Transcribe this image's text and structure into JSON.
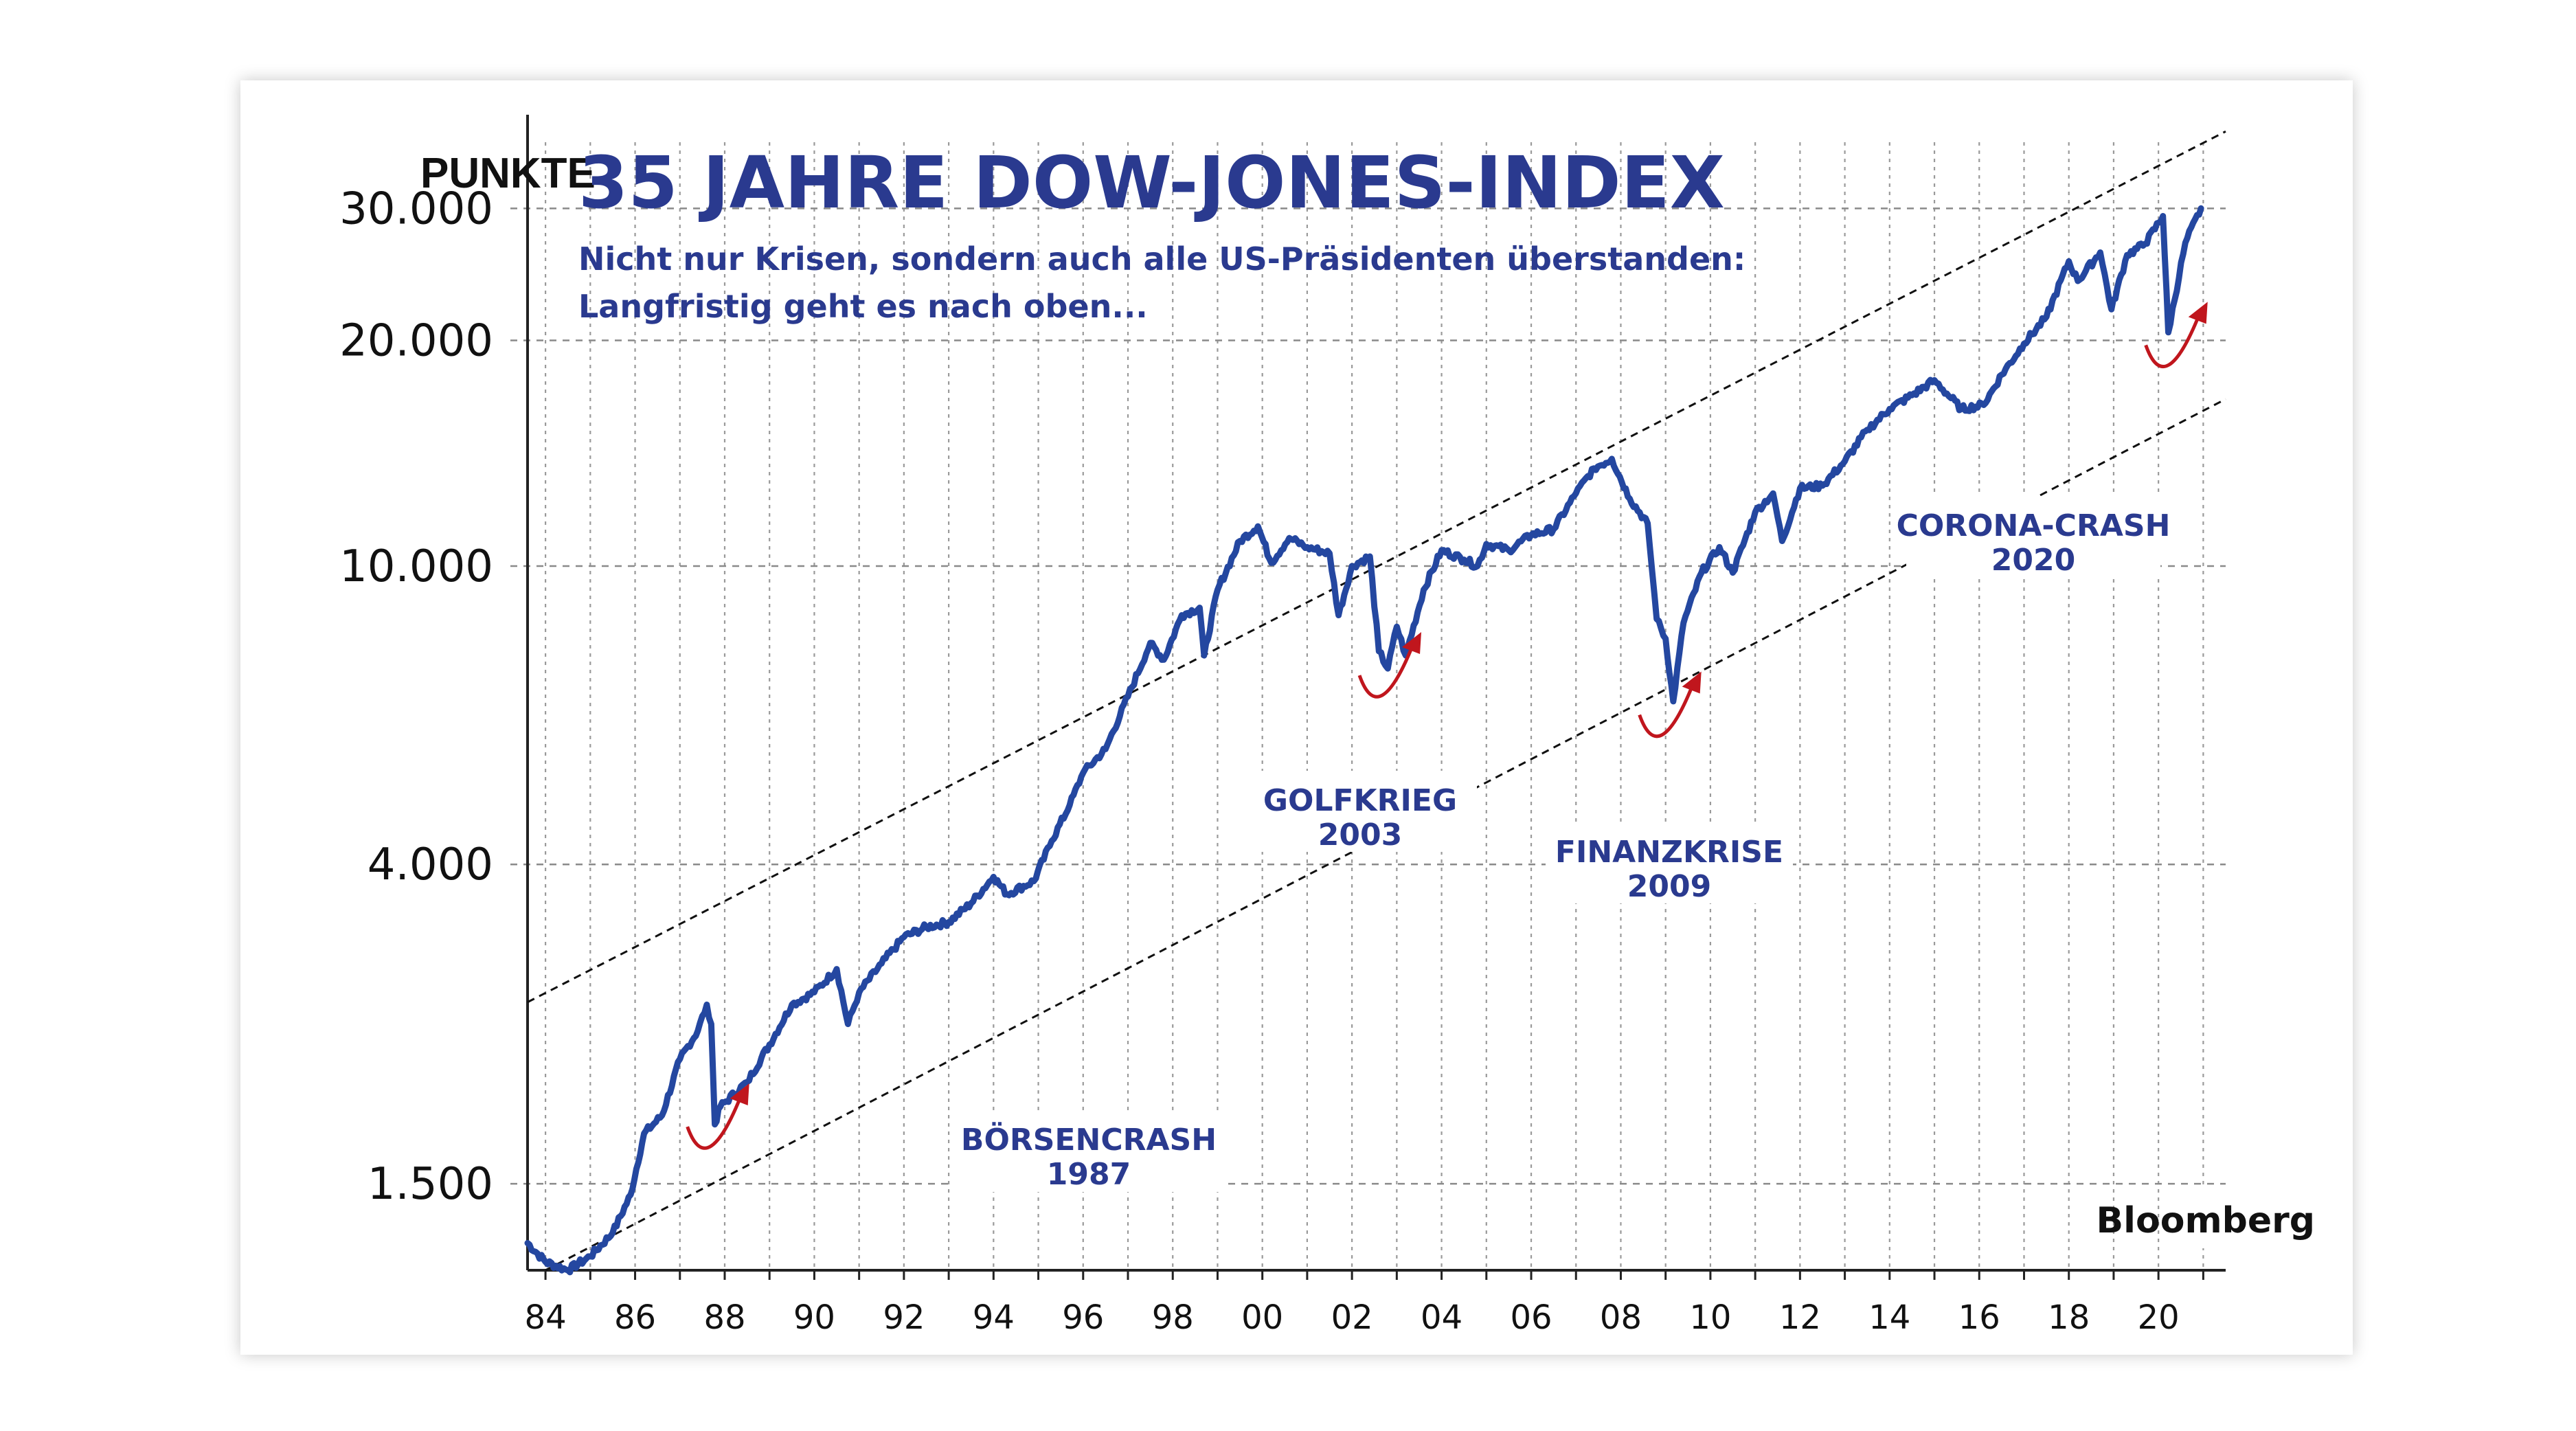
{
  "chart_data": {
    "type": "line",
    "title": "35 JAHRE DOW-JONES-INDEX",
    "subtitle_lines": [
      "Nicht  nur Krisen, sondern auch alle US-Präsidenten überstanden:",
      "Langfristig geht es nach oben..."
    ],
    "ylabel": "PUNKTE",
    "y_scale": "log",
    "ylim": [
      1150,
      40000
    ],
    "xlim": [
      1983.6,
      2021.5
    ],
    "yticks": [
      {
        "value": 1500,
        "label": "1.500"
      },
      {
        "value": 4000,
        "label": "4.000"
      },
      {
        "value": 10000,
        "label": "10.000"
      },
      {
        "value": 20000,
        "label": "20.000"
      },
      {
        "value": 30000,
        "label": "30.000"
      }
    ],
    "xticks": [
      {
        "value": 1984,
        "label": "84"
      },
      {
        "value": 1986,
        "label": "86"
      },
      {
        "value": 1988,
        "label": "88"
      },
      {
        "value": 1990,
        "label": "90"
      },
      {
        "value": 1992,
        "label": "92"
      },
      {
        "value": 1994,
        "label": "94"
      },
      {
        "value": 1996,
        "label": "96"
      },
      {
        "value": 1998,
        "label": "98"
      },
      {
        "value": 2000,
        "label": "00"
      },
      {
        "value": 2002,
        "label": "02"
      },
      {
        "value": 2004,
        "label": "04"
      },
      {
        "value": 2006,
        "label": "06"
      },
      {
        "value": 2008,
        "label": "08"
      },
      {
        "value": 2010,
        "label": "10"
      },
      {
        "value": 2012,
        "label": "12"
      },
      {
        "value": 2014,
        "label": "14"
      },
      {
        "value": 2016,
        "label": "16"
      },
      {
        "value": 2018,
        "label": "18"
      },
      {
        "value": 2020,
        "label": "20"
      }
    ],
    "grid": true,
    "series_color": "#2447a0",
    "series": [
      {
        "values": [
          [
            1983.6,
            1250
          ],
          [
            1984.0,
            1180
          ],
          [
            1984.5,
            1150
          ],
          [
            1985.0,
            1200
          ],
          [
            1985.5,
            1290
          ],
          [
            1985.9,
            1450
          ],
          [
            1986.2,
            1750
          ],
          [
            1986.6,
            1850
          ],
          [
            1987.0,
            2200
          ],
          [
            1987.4,
            2400
          ],
          [
            1987.6,
            2600
          ],
          [
            1987.7,
            2450
          ],
          [
            1987.78,
            1800
          ],
          [
            1987.9,
            1900
          ],
          [
            1988.5,
            2050
          ],
          [
            1989.0,
            2300
          ],
          [
            1989.5,
            2600
          ],
          [
            1990.0,
            2700
          ],
          [
            1990.5,
            2900
          ],
          [
            1990.75,
            2450
          ],
          [
            1991.0,
            2700
          ],
          [
            1991.5,
            2950
          ],
          [
            1992.0,
            3200
          ],
          [
            1992.5,
            3300
          ],
          [
            1993.0,
            3350
          ],
          [
            1993.5,
            3550
          ],
          [
            1994.0,
            3850
          ],
          [
            1994.3,
            3650
          ],
          [
            1994.9,
            3800
          ],
          [
            1995.3,
            4300
          ],
          [
            1995.7,
            4800
          ],
          [
            1996.0,
            5300
          ],
          [
            1996.5,
            5700
          ],
          [
            1997.0,
            6700
          ],
          [
            1997.5,
            7900
          ],
          [
            1997.8,
            7500
          ],
          [
            1998.2,
            8600
          ],
          [
            1998.6,
            8800
          ],
          [
            1998.7,
            7600
          ],
          [
            1999.0,
            9300
          ],
          [
            1999.5,
            10800
          ],
          [
            1999.9,
            11300
          ],
          [
            2000.2,
            10100
          ],
          [
            2000.6,
            10900
          ],
          [
            2001.0,
            10600
          ],
          [
            2001.5,
            10400
          ],
          [
            2001.7,
            8600
          ],
          [
            2002.0,
            10000
          ],
          [
            2002.4,
            10300
          ],
          [
            2002.6,
            7700
          ],
          [
            2002.8,
            7300
          ],
          [
            2003.0,
            8300
          ],
          [
            2003.2,
            7600
          ],
          [
            2003.6,
            9300
          ],
          [
            2004.0,
            10500
          ],
          [
            2004.5,
            10200
          ],
          [
            2004.8,
            10000
          ],
          [
            2005.0,
            10700
          ],
          [
            2005.5,
            10500
          ],
          [
            2006.0,
            11000
          ],
          [
            2006.5,
            11200
          ],
          [
            2007.0,
            12500
          ],
          [
            2007.4,
            13500
          ],
          [
            2007.8,
            13900
          ],
          [
            2008.2,
            12300
          ],
          [
            2008.6,
            11400
          ],
          [
            2008.8,
            8500
          ],
          [
            2009.0,
            8000
          ],
          [
            2009.17,
            6600
          ],
          [
            2009.4,
            8400
          ],
          [
            2009.8,
            9800
          ],
          [
            2010.2,
            10600
          ],
          [
            2010.5,
            9800
          ],
          [
            2011.0,
            11800
          ],
          [
            2011.4,
            12500
          ],
          [
            2011.6,
            10800
          ],
          [
            2012.0,
            12700
          ],
          [
            2012.5,
            12800
          ],
          [
            2013.0,
            13800
          ],
          [
            2013.5,
            15200
          ],
          [
            2014.0,
            16200
          ],
          [
            2014.5,
            16900
          ],
          [
            2015.0,
            17700
          ],
          [
            2015.6,
            16200
          ],
          [
            2016.1,
            16400
          ],
          [
            2016.5,
            18000
          ],
          [
            2017.0,
            19800
          ],
          [
            2017.5,
            21500
          ],
          [
            2018.0,
            25500
          ],
          [
            2018.2,
            24000
          ],
          [
            2018.7,
            26200
          ],
          [
            2018.95,
            22000
          ],
          [
            2019.3,
            26000
          ],
          [
            2019.7,
            26900
          ],
          [
            2020.1,
            29300
          ],
          [
            2020.22,
            20500
          ],
          [
            2020.6,
            27000
          ],
          [
            2020.95,
            30000
          ]
        ]
      }
    ],
    "trend_lines": [
      {
        "from": [
          1983.6,
          2620
        ],
        "to": [
          2021.5,
          38000
        ]
      },
      {
        "from": [
          1984.0,
          1150
        ],
        "to": [
          2021.5,
          16700
        ]
      }
    ],
    "annotations": [
      {
        "label": "BÖRSENCRASH",
        "year": "1987",
        "arrow_x": 1987.75,
        "arrow_y": 1750
      },
      {
        "label": "GOLFKRIEG",
        "year": "2003",
        "arrow_x": 2002.75,
        "arrow_y": 7000
      },
      {
        "label": "FINANZKRISE",
        "year": "2009",
        "arrow_x": 2009.0,
        "arrow_y": 6200
      },
      {
        "label": "CORONA-CRASH",
        "year": "2020",
        "arrow_x": 2020.3,
        "arrow_y": 19300
      }
    ],
    "source": "Bloomberg"
  }
}
